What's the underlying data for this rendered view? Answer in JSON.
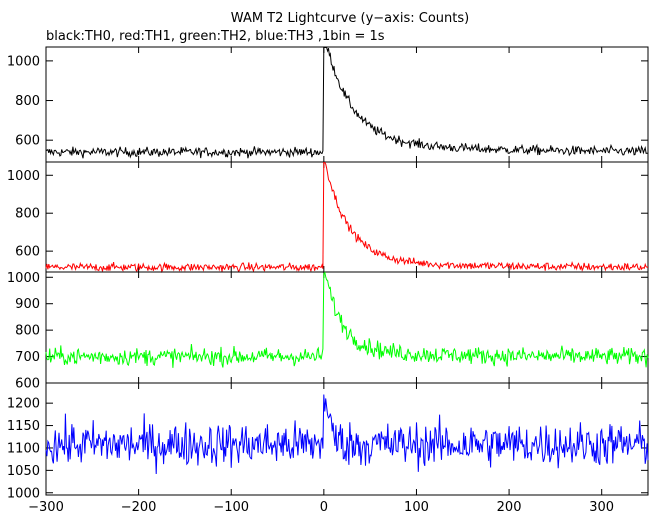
{
  "title": "WAM T2 Lightcurve (y−axis: Counts)",
  "subtitle": "black:TH0, red:TH1, green:TH2, blue:TH3 ,1bin = 1s",
  "chart_data": [
    {
      "type": "line",
      "series": [
        {
          "name": "TH0",
          "color": "#000000"
        }
      ],
      "xlim": [
        -300,
        350
      ],
      "ylim": [
        490,
        1070
      ],
      "yticks": [
        600,
        800,
        1000
      ],
      "baseline": 540,
      "noise": 22,
      "peak": 1080,
      "decay_s": 28,
      "tail": 60,
      "tail_decay_s": 120
    },
    {
      "type": "line",
      "series": [
        {
          "name": "TH1",
          "color": "#ff0000"
        }
      ],
      "xlim": [
        -300,
        350
      ],
      "ylim": [
        490,
        1070
      ],
      "yticks": [
        600,
        800,
        1000
      ],
      "baseline": 515,
      "noise": 20,
      "peak": 1060,
      "decay_s": 25,
      "tail": 40,
      "tail_decay_s": 100
    },
    {
      "type": "line",
      "series": [
        {
          "name": "TH2",
          "color": "#00ff00"
        }
      ],
      "xlim": [
        -300,
        350
      ],
      "ylim": [
        600,
        1020
      ],
      "yticks": [
        600,
        700,
        800,
        900,
        1000
      ],
      "baseline": 700,
      "noise": 30,
      "peak": 1010,
      "decay_s": 18,
      "tail": 30,
      "tail_decay_s": 80
    },
    {
      "type": "line",
      "series": [
        {
          "name": "TH3",
          "color": "#0000ff"
        }
      ],
      "xlim": [
        -300,
        350
      ],
      "ylim": [
        995,
        1245
      ],
      "yticks": [
        1000,
        1050,
        1100,
        1150,
        1200
      ],
      "baseline": 1108,
      "noise": 45,
      "peak": 1240,
      "decay_s": 6,
      "tail": 0,
      "tail_decay_s": 1
    }
  ],
  "xticks": [
    -300,
    -200,
    -100,
    0,
    100,
    200,
    300
  ],
  "ticklabels": {
    "y0": [
      "600",
      "800",
      "1000"
    ],
    "y1": [
      "600",
      "800",
      "1000"
    ],
    "y2": [
      "600",
      "700",
      "800",
      "900",
      "1000"
    ],
    "y3": [
      "1000",
      "1050",
      "1100",
      "1150",
      "1200"
    ],
    "x": [
      "−300",
      "−200",
      "−100",
      "0",
      "100",
      "200",
      "300"
    ]
  }
}
